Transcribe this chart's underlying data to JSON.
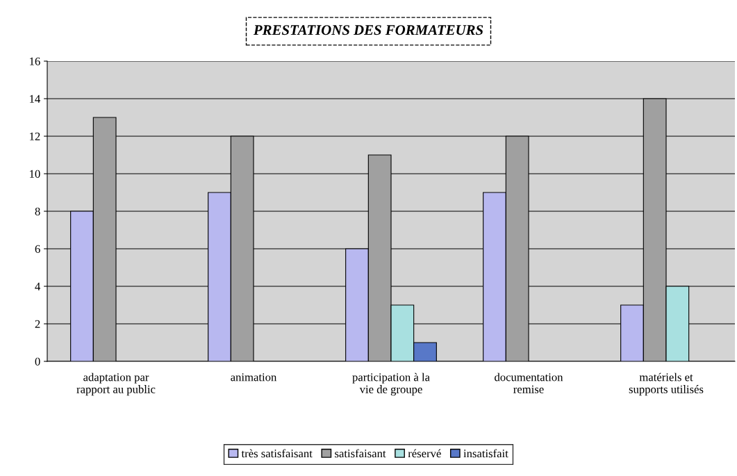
{
  "chart_data": {
    "type": "bar",
    "title": "PRESTATIONS DES FORMATEURS",
    "categories": [
      "adaptation par\nrapport au public",
      "animation",
      "participation à la\nvie de groupe",
      "documentation\nremise",
      "matériels et\nsupports utilisés"
    ],
    "series": [
      {
        "name": "très satisfaisant",
        "color": "#b8b8f0",
        "values": [
          8,
          9,
          6,
          9,
          3
        ]
      },
      {
        "name": "satisfaisant",
        "color": "#a0a0a0",
        "values": [
          13,
          12,
          11,
          12,
          14
        ]
      },
      {
        "name": "réservé",
        "color": "#a8e0e0",
        "values": [
          null,
          null,
          3,
          null,
          4
        ]
      },
      {
        "name": "insatisfait",
        "color": "#5878c8",
        "values": [
          null,
          null,
          1,
          null,
          null
        ]
      }
    ],
    "ylim": [
      0,
      16
    ],
    "yticks": [
      0,
      2,
      4,
      6,
      8,
      10,
      12,
      14,
      16
    ],
    "grid": "y",
    "legend": "bottom"
  }
}
